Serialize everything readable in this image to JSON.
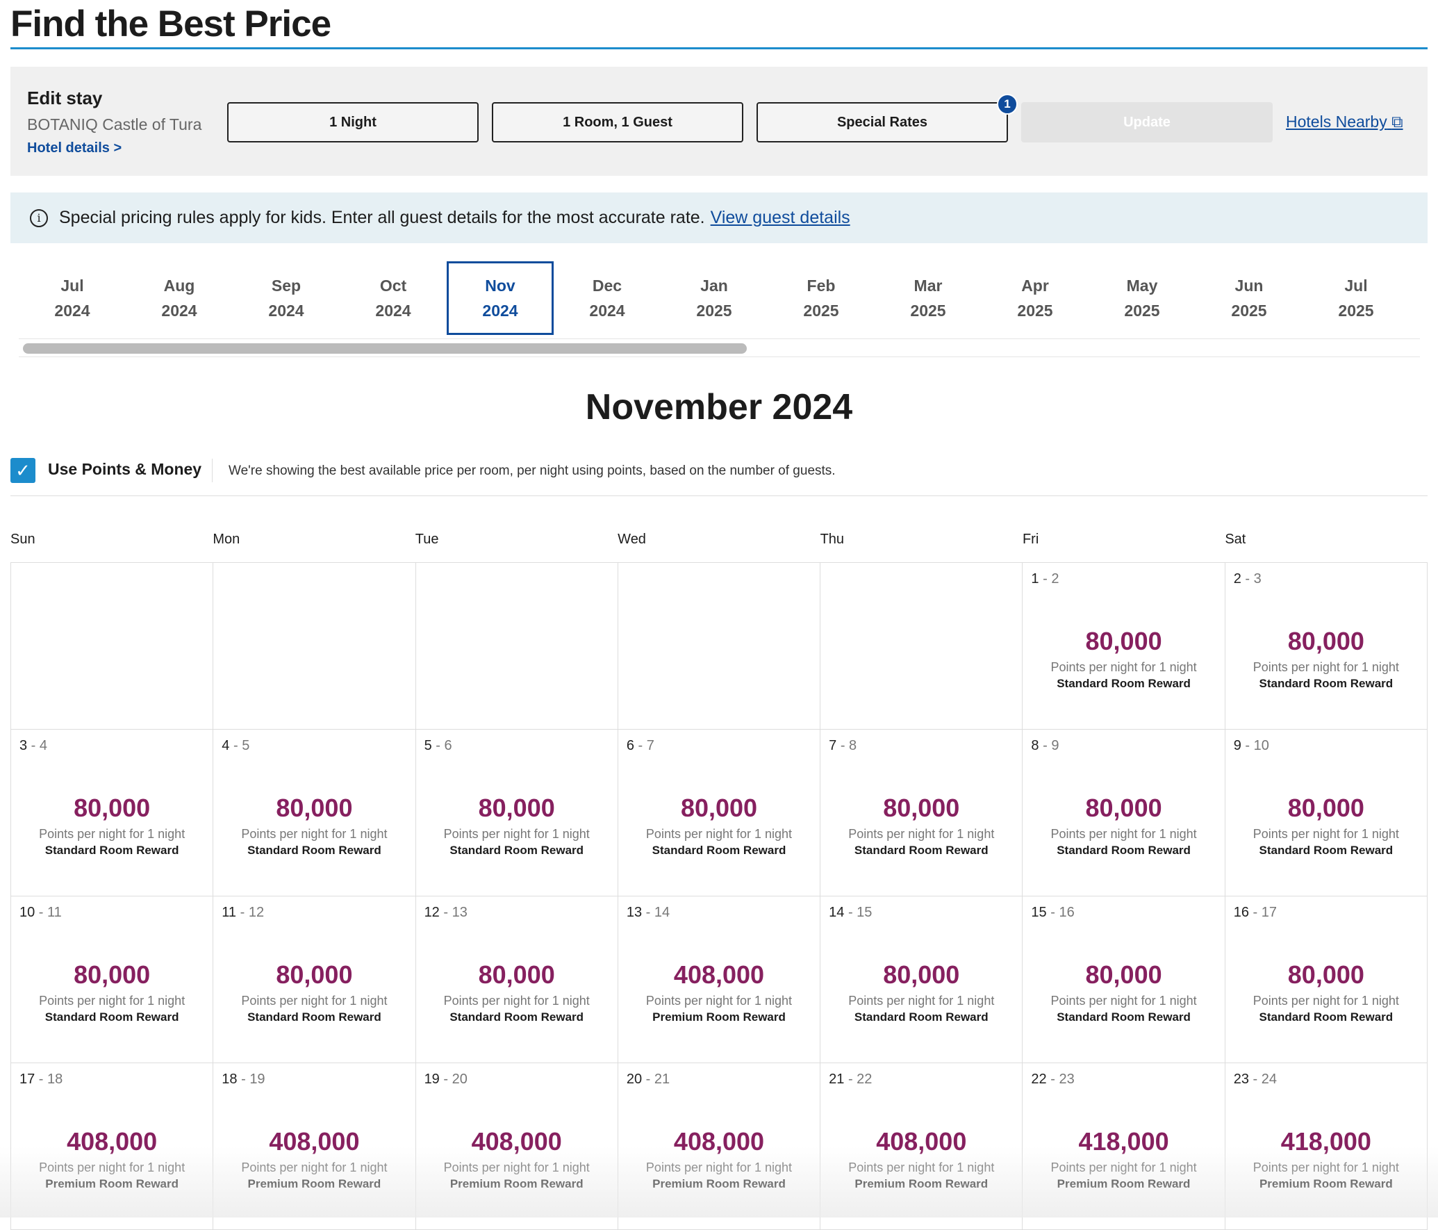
{
  "title": "Find the Best Price",
  "edit": {
    "heading": "Edit stay",
    "hotel": "BOTANIQ Castle of Tura",
    "details_link": "Hotel details >",
    "nights": "1 Night",
    "rooms": "1 Room, 1 Guest",
    "rates": "Special Rates",
    "rates_badge": "1",
    "update": "Update",
    "nearby": "Hotels Nearby"
  },
  "banner": {
    "text": "Special pricing rules apply for kids. Enter all guest details for the most accurate rate.",
    "link": "View guest details"
  },
  "months": [
    [
      "Jul",
      "2024"
    ],
    [
      "Aug",
      "2024"
    ],
    [
      "Sep",
      "2024"
    ],
    [
      "Oct",
      "2024"
    ],
    [
      "Nov",
      "2024"
    ],
    [
      "Dec",
      "2024"
    ],
    [
      "Jan",
      "2025"
    ],
    [
      "Feb",
      "2025"
    ],
    [
      "Mar",
      "2025"
    ],
    [
      "Apr",
      "2025"
    ],
    [
      "May",
      "2025"
    ],
    [
      "Jun",
      "2025"
    ],
    [
      "Jul",
      "2025"
    ]
  ],
  "selected_month_index": 4,
  "month_heading": "November 2024",
  "points": {
    "label": "Use Points & Money",
    "checked": true,
    "note": "We're showing the best available price per room, per night using points, based on the number of guests."
  },
  "days": [
    "Sun",
    "Mon",
    "Tue",
    "Wed",
    "Thu",
    "Fri",
    "Sat"
  ],
  "points_label": "Points per night for 1 night",
  "cells": [
    null,
    null,
    null,
    null,
    null,
    {
      "in": "1",
      "out": "2",
      "price": "80,000",
      "reward": "Standard Room Reward"
    },
    {
      "in": "2",
      "out": "3",
      "price": "80,000",
      "reward": "Standard Room Reward"
    },
    {
      "in": "3",
      "out": "4",
      "price": "80,000",
      "reward": "Standard Room Reward"
    },
    {
      "in": "4",
      "out": "5",
      "price": "80,000",
      "reward": "Standard Room Reward"
    },
    {
      "in": "5",
      "out": "6",
      "price": "80,000",
      "reward": "Standard Room Reward"
    },
    {
      "in": "6",
      "out": "7",
      "price": "80,000",
      "reward": "Standard Room Reward"
    },
    {
      "in": "7",
      "out": "8",
      "price": "80,000",
      "reward": "Standard Room Reward"
    },
    {
      "in": "8",
      "out": "9",
      "price": "80,000",
      "reward": "Standard Room Reward"
    },
    {
      "in": "9",
      "out": "10",
      "price": "80,000",
      "reward": "Standard Room Reward"
    },
    {
      "in": "10",
      "out": "11",
      "price": "80,000",
      "reward": "Standard Room Reward"
    },
    {
      "in": "11",
      "out": "12",
      "price": "80,000",
      "reward": "Standard Room Reward"
    },
    {
      "in": "12",
      "out": "13",
      "price": "80,000",
      "reward": "Standard Room Reward"
    },
    {
      "in": "13",
      "out": "14",
      "price": "408,000",
      "reward": "Premium Room Reward"
    },
    {
      "in": "14",
      "out": "15",
      "price": "80,000",
      "reward": "Standard Room Reward"
    },
    {
      "in": "15",
      "out": "16",
      "price": "80,000",
      "reward": "Standard Room Reward"
    },
    {
      "in": "16",
      "out": "17",
      "price": "80,000",
      "reward": "Standard Room Reward"
    },
    {
      "in": "17",
      "out": "18",
      "price": "408,000",
      "reward": "Premium Room Reward"
    },
    {
      "in": "18",
      "out": "19",
      "price": "408,000",
      "reward": "Premium Room Reward"
    },
    {
      "in": "19",
      "out": "20",
      "price": "408,000",
      "reward": "Premium Room Reward"
    },
    {
      "in": "20",
      "out": "21",
      "price": "408,000",
      "reward": "Premium Room Reward"
    },
    {
      "in": "21",
      "out": "22",
      "price": "408,000",
      "reward": "Premium Room Reward"
    },
    {
      "in": "22",
      "out": "23",
      "price": "418,000",
      "reward": "Premium Room Reward"
    },
    {
      "in": "23",
      "out": "24",
      "price": "418,000",
      "reward": "Premium Room Reward"
    }
  ]
}
